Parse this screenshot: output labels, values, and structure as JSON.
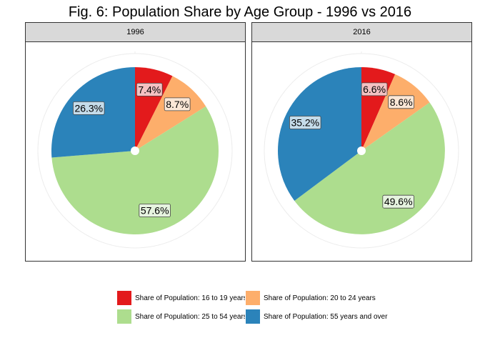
{
  "chart_data": {
    "type": "pie",
    "title": "Fig. 6: Population Share by Age Group - 1996 vs 2016",
    "categories": [
      "Share of Population: 16 to 19 years",
      "Share of Population: 20 to 24 years",
      "Share of Population: 25 to 54 years",
      "Share of Population: 55 years and over"
    ],
    "colors": [
      "#e31a1c",
      "#fdae6b",
      "#addd8e",
      "#2b83ba"
    ],
    "panels": [
      {
        "label": "1996",
        "values": [
          7.4,
          8.7,
          57.6,
          26.3
        ],
        "value_labels": [
          "7.4%",
          "8.7%",
          "57.6%",
          "26.3%"
        ]
      },
      {
        "label": "2016",
        "values": [
          6.6,
          8.6,
          49.6,
          35.2
        ],
        "value_labels": [
          "6.6%",
          "8.6%",
          "49.6%",
          "35.2%"
        ]
      }
    ],
    "legend": {
      "position": "bottom"
    }
  }
}
